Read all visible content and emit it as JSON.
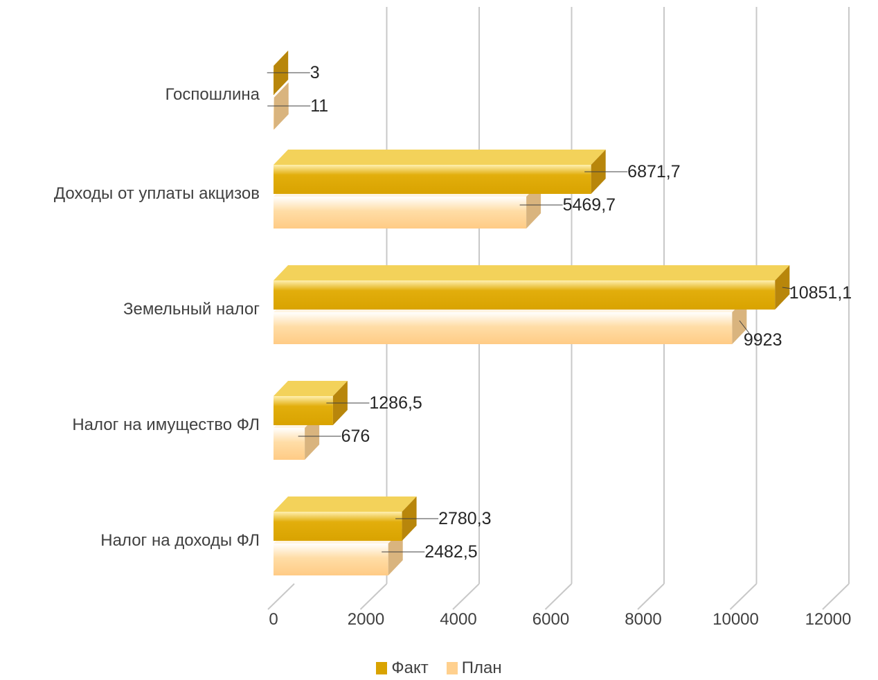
{
  "chart_data": {
    "type": "bar",
    "orientation": "horizontal",
    "style": "3d-clustered",
    "categories": [
      "Налог на доходы ФЛ",
      "Налог на имущество ФЛ",
      "Земельный налог",
      "Доходы от уплаты акцизов",
      "Госпошлина"
    ],
    "series": [
      {
        "name": "Факт",
        "color": "#DAA520",
        "values": [
          2780.3,
          1286.5,
          10851.1,
          6871.7,
          3
        ],
        "labels": [
          "2780,3",
          "1286,5",
          "10851,1",
          "6871,7",
          "3"
        ]
      },
      {
        "name": "План",
        "color": "#FFCC88",
        "values": [
          2482.5,
          676,
          9923,
          5469.7,
          11
        ],
        "labels": [
          "2482,5",
          "676",
          "9923",
          "5469,7",
          "11"
        ]
      }
    ],
    "xlim": [
      0,
      12000
    ],
    "xticks": [
      "0",
      "2000",
      "4000",
      "6000",
      "8000",
      "10000",
      "12000"
    ],
    "grid": true,
    "legend_position": "bottom",
    "title": "",
    "xlabel": "",
    "ylabel": ""
  }
}
